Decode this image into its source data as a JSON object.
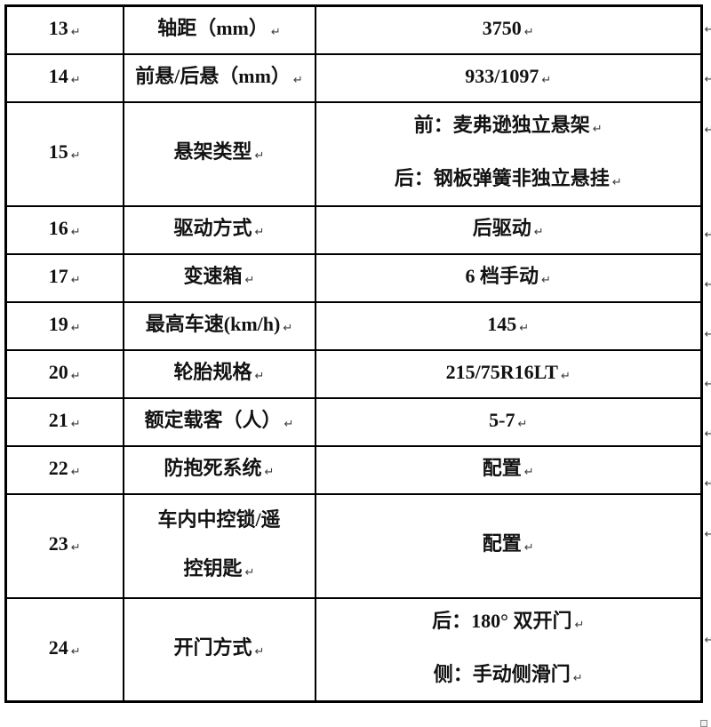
{
  "document": {
    "paragraph_mark": "↵",
    "end_of_document_marker": "square"
  },
  "table": {
    "columns": [
      "row-number",
      "spec-label",
      "spec-value"
    ],
    "rows": [
      {
        "num": "13",
        "label_lines": [
          "轴距（mm）"
        ],
        "value_lines": [
          "3750"
        ]
      },
      {
        "num": "14",
        "label_lines": [
          "前悬/后悬（mm）"
        ],
        "value_lines": [
          "933/1097"
        ]
      },
      {
        "num": "15",
        "label_lines": [
          "悬架类型"
        ],
        "value_lines": [
          "前：麦弗逊独立悬架",
          "后：钢板弹簧非独立悬挂"
        ]
      },
      {
        "num": "16",
        "label_lines": [
          "驱动方式"
        ],
        "value_lines": [
          "后驱动"
        ]
      },
      {
        "num": "17",
        "label_lines": [
          "变速箱"
        ],
        "value_lines": [
          "6 档手动"
        ]
      },
      {
        "num": "19",
        "label_lines": [
          "最高车速(km/h)"
        ],
        "value_lines": [
          "145"
        ]
      },
      {
        "num": "20",
        "label_lines": [
          "轮胎规格"
        ],
        "value_lines": [
          "215/75R16LT"
        ]
      },
      {
        "num": "21",
        "label_lines": [
          "额定载客（人）"
        ],
        "value_lines": [
          "5-7"
        ]
      },
      {
        "num": "22",
        "label_lines": [
          "防抱死系统"
        ],
        "value_lines": [
          "配置"
        ]
      },
      {
        "num": "23",
        "label_lines": [
          "车内中控锁/遥",
          "控钥匙"
        ],
        "value_lines": [
          "配置"
        ]
      },
      {
        "num": "24",
        "label_lines": [
          "开门方式"
        ],
        "value_lines": [
          "后：180° 双开门",
          "侧：手动侧滑门"
        ]
      }
    ]
  },
  "colors": {
    "border": "#000000",
    "text": "#121212",
    "mark": "#3c3c3c",
    "background": "#ffffff"
  }
}
